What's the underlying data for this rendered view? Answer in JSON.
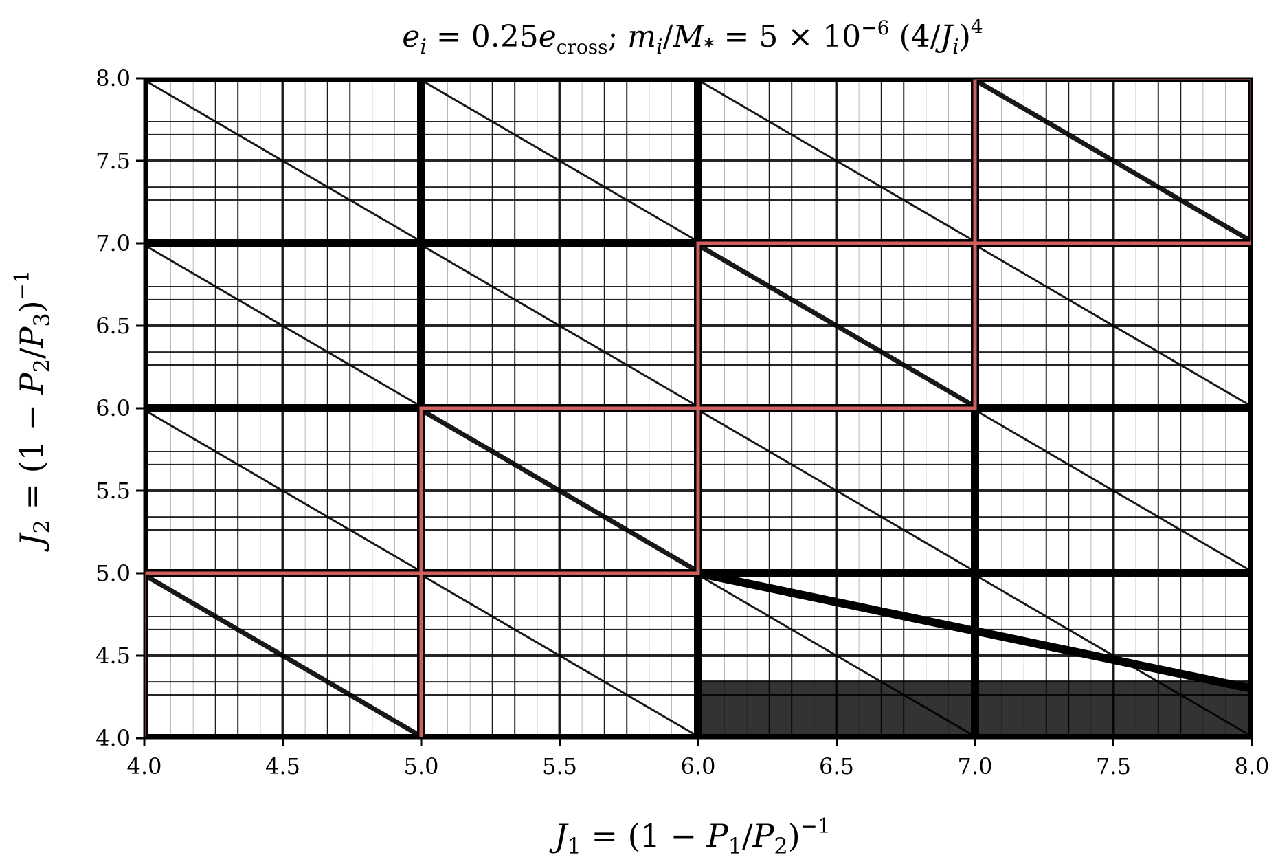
{
  "chart_data": {
    "type": "scatter",
    "title": "e_i = 0.25e_cross;  m_i/M_* = 5 × 10^-6 (4/J_i)^4",
    "title_parts": {
      "lhs1": "e",
      "lhs1_sub": "i",
      "eq1": " = 0.25",
      "e2": "e",
      "e2_sub": "cross",
      "sep": ";  ",
      "m": "m",
      "m_sub": "i",
      "slash": "/",
      "M": "M",
      "M_sub": "*",
      "eq2": " = 5 × 10",
      "exp": "−6",
      "paren": " (4/",
      "J": "J",
      "J_sub": "i",
      "close": ")",
      "exp2": "4"
    },
    "xlabel": "J_1 = (1 − P_1/P_2)^−1",
    "xlabel_parts": {
      "J": "J",
      "J_sub": "1",
      "mid": " = (1 − ",
      "P1": "P",
      "P1_sub": "1",
      "slash": "/",
      "P2": "P",
      "P2_sub": "2",
      "close": ")",
      "exp": "−1"
    },
    "ylabel": "J_2 = (1 − P_2/P_3)^−1",
    "ylabel_parts": {
      "J": "J",
      "J_sub": "2",
      "mid": " = (1 − ",
      "P1": "P",
      "P1_sub": "2",
      "slash": "/",
      "P2": "P",
      "P2_sub": "3",
      "close": ")",
      "exp": "−1"
    },
    "xlim": [
      4.0,
      8.0
    ],
    "ylim": [
      4.0,
      8.0
    ],
    "xticks": [
      "4.0",
      "4.5",
      "5.0",
      "5.5",
      "6.0",
      "6.5",
      "7.0",
      "7.5",
      "8.0"
    ],
    "yticks": [
      "4.0",
      "4.5",
      "5.0",
      "5.5",
      "6.0",
      "6.5",
      "7.0",
      "7.5",
      "8.0"
    ],
    "grid": false,
    "background_color": "#000000",
    "stable_color": "#ffffff",
    "highlight_color": "#d06060",
    "stable_cells_diagonal_strips": [
      {
        "x": [
          4.0,
          5.0
        ],
        "y": [
          4.0,
          5.0
        ],
        "slope_strip": true
      },
      {
        "x": [
          5.0,
          6.0
        ],
        "y": [
          5.0,
          6.0
        ],
        "slope_strip": true
      },
      {
        "x": [
          6.0,
          7.0
        ],
        "y": [
          6.0,
          7.0
        ],
        "slope_strip": true
      },
      {
        "x": [
          7.0,
          8.0
        ],
        "y": [
          7.0,
          8.0
        ],
        "slope_strip": true
      }
    ],
    "highlight_boundary": [
      [
        4.0,
        4.0
      ],
      [
        4.0,
        5.0
      ],
      [
        5.0,
        5.0
      ],
      [
        5.0,
        6.0
      ],
      [
        6.0,
        6.0
      ],
      [
        6.0,
        7.0
      ],
      [
        7.0,
        7.0
      ],
      [
        7.0,
        8.0
      ],
      [
        8.0,
        8.0
      ],
      [
        8.0,
        7.0
      ],
      [
        7.0,
        7.0
      ],
      [
        7.0,
        6.0
      ],
      [
        6.0,
        6.0
      ],
      [
        6.0,
        5.0
      ],
      [
        5.0,
        5.0
      ],
      [
        5.0,
        4.0
      ]
    ]
  }
}
